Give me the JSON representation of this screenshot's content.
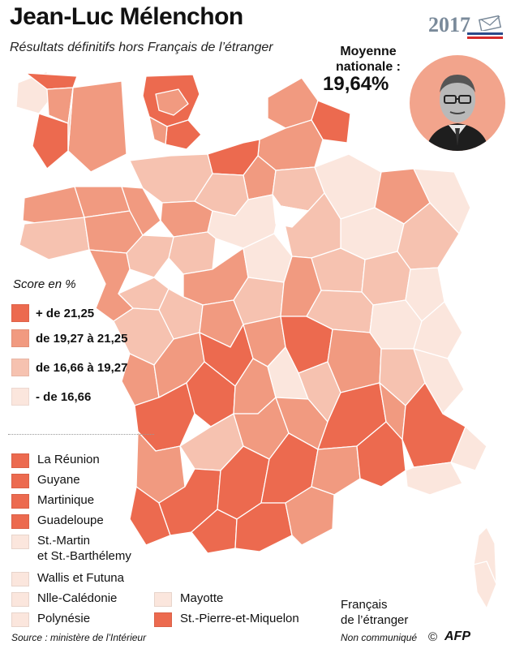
{
  "header": {
    "title": "Jean-Luc Mélenchon",
    "subtitle": "Résultats définitifs hors Français de l’étranger",
    "logo_year": "2017",
    "average_label_line1": "Moyenne",
    "average_label_line2": "nationale :",
    "average_value": "19,64%"
  },
  "legend": {
    "title": "Score en %",
    "classes": [
      {
        "label": "+ de 21,25",
        "color": "#ec6a4f"
      },
      {
        "label": "de 19,27 à 21,25",
        "color": "#f19a80"
      },
      {
        "label": "de 16,66 à 19,27",
        "color": "#f6c2b0"
      },
      {
        "label": "- de 16,66",
        "color": "#fbe6dd"
      }
    ]
  },
  "overseas": [
    {
      "label": "La Réunion",
      "color": "#ec6a4f"
    },
    {
      "label": "Guyane",
      "color": "#ec6a4f"
    },
    {
      "label": "Martinique",
      "color": "#ec6a4f"
    },
    {
      "label": "Guadeloupe",
      "color": "#ec6a4f"
    },
    {
      "label": "St.-Martin\net St.-Barthélemy",
      "color": "#fbe6dd"
    },
    {
      "label": "Wallis et Futuna",
      "color": "#fbe6dd"
    },
    {
      "label": "Nlle-Calédonie",
      "color": "#fbe6dd"
    },
    {
      "label": "Polynésie",
      "color": "#fbe6dd"
    },
    {
      "label": "Mayotte",
      "color": "#fbe6dd"
    },
    {
      "label": "St.-Pierre-et-Miquelon",
      "color": "#ec6a4f"
    }
  ],
  "abroad": {
    "label_line1": "Français",
    "label_line2": "de l’étranger",
    "note": "Non communiqué"
  },
  "footer": {
    "source": "Source : ministère de l’Intérieur",
    "copyright": "©",
    "agency": "AFP"
  },
  "colors": {
    "c4": "#ec6a4f",
    "c3": "#f19a80",
    "c2": "#f6c2b0",
    "c1": "#fbe6dd"
  }
}
